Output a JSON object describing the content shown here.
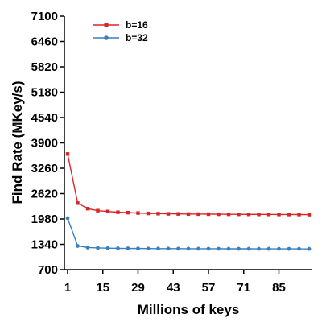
{
  "chart_data": {
    "type": "line",
    "xlabel": "Millions of keys",
    "ylabel": "Find Rate (MKey/s)",
    "xlim": [
      1,
      97
    ],
    "ylim": [
      700,
      7100
    ],
    "x_ticks": [
      1,
      15,
      29,
      43,
      57,
      71,
      85
    ],
    "y_ticks": [
      700,
      1340,
      1980,
      2620,
      3260,
      3900,
      4540,
      5180,
      5820,
      6460,
      7100
    ],
    "legend_position": "top-left",
    "grid": false,
    "x": [
      1,
      5,
      9,
      13,
      17,
      21,
      25,
      29,
      33,
      37,
      41,
      45,
      49,
      53,
      57,
      61,
      65,
      69,
      73,
      77,
      81,
      85,
      89,
      93,
      97
    ],
    "series": [
      {
        "name": "b=16",
        "color": "#d62728",
        "marker": "square",
        "values": [
          3620,
          2380,
          2240,
          2190,
          2170,
          2150,
          2140,
          2130,
          2120,
          2115,
          2110,
          2108,
          2105,
          2103,
          2102,
          2100,
          2099,
          2098,
          2097,
          2096,
          2095,
          2094,
          2093,
          2092,
          2090
        ]
      },
      {
        "name": "b=32",
        "color": "#3a7fc0",
        "marker": "circle",
        "values": [
          2000,
          1300,
          1260,
          1250,
          1245,
          1240,
          1238,
          1236,
          1234,
          1233,
          1232,
          1231,
          1230,
          1230,
          1229,
          1229,
          1228,
          1228,
          1228,
          1227,
          1227,
          1227,
          1226,
          1226,
          1225
        ]
      }
    ]
  }
}
